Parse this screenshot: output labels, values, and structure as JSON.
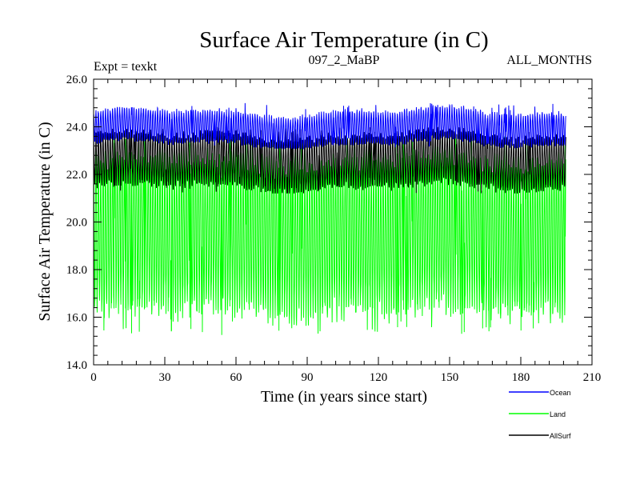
{
  "chart_data": {
    "type": "line",
    "title": "Surface Air Temperature (in C)",
    "subtitle_left": "Expt = texkt",
    "subtitle_center": "097_2_MaBP",
    "subtitle_right": "ALL_MONTHS",
    "xlabel": "Time (in years since start)",
    "ylabel": "Surface Air Temperature (in C)",
    "xlim": [
      0,
      210
    ],
    "ylim": [
      14.0,
      26.0
    ],
    "x_ticks": [
      "0",
      "30",
      "60",
      "90",
      "120",
      "150",
      "180",
      "210"
    ],
    "y_ticks": [
      "14.0",
      "16.0",
      "18.0",
      "20.0",
      "22.0",
      "24.0",
      "26.0"
    ],
    "x_range_years": [
      0,
      199
    ],
    "samples_per_year": 12,
    "series": [
      {
        "name": "Land",
        "color": "#00ff00",
        "min": 15.2,
        "max": 23.6,
        "typical_low": 16.3,
        "typical_high": 22.6
      },
      {
        "name": "AllSurf",
        "color": "#000000",
        "min": 21.2,
        "max": 24.0,
        "typical_low": 21.5,
        "typical_high": 23.6
      },
      {
        "name": "Ocean",
        "color": "#0000ff",
        "min": 23.1,
        "max": 25.0,
        "typical_low": 23.3,
        "typical_high": 24.6
      }
    ],
    "legend": [
      "Ocean",
      "Land",
      "AllSurf"
    ]
  }
}
